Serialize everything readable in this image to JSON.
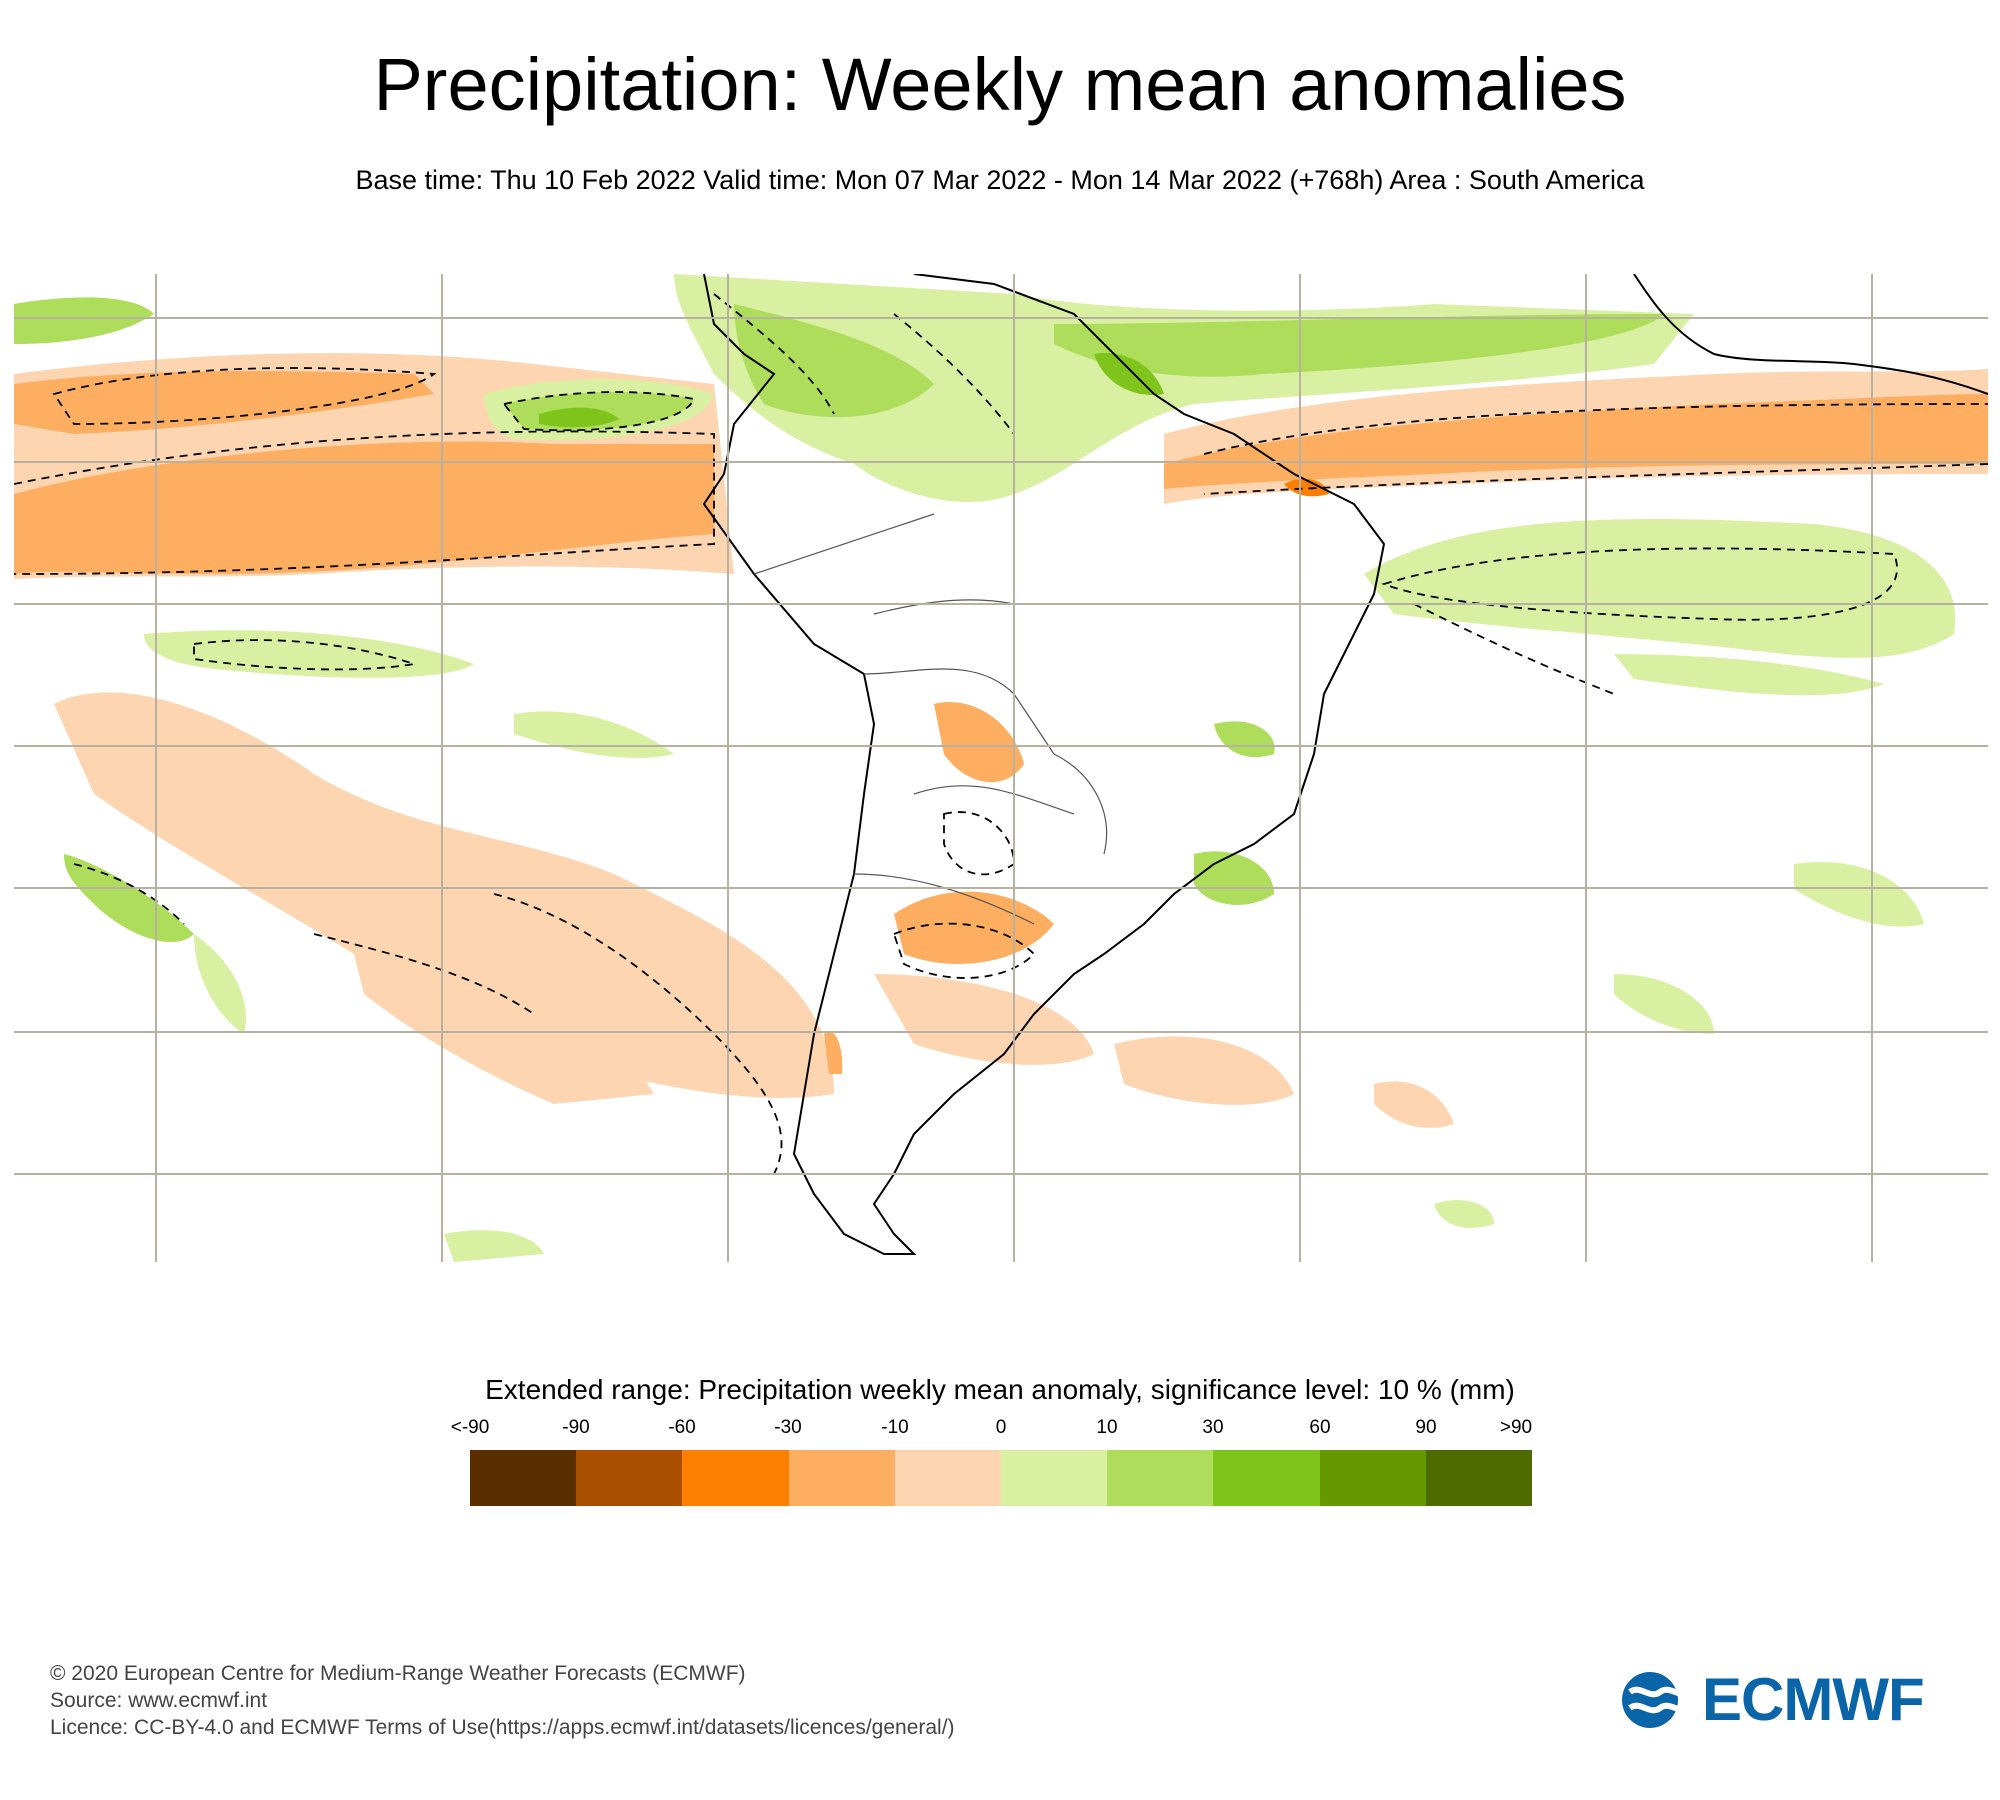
{
  "header": {
    "title": "Precipitation: Weekly mean anomalies",
    "subtitle": "Base time: Thu 10 Feb 2022 Valid time: Mon 07 Mar 2022 - Mon 14 Mar 2022 (+768h) Area : South America"
  },
  "map": {
    "region": "South America",
    "colors": {
      "strong_dry": "#fdae61",
      "dry": "#fdd5b1",
      "wet": "#d9f0a3",
      "strong_wet": "#addd5a",
      "very_wet": "#7fc41b",
      "extreme_dry": "#fd7f00",
      "land_line": "#000000",
      "grid": "#b8b0a0"
    }
  },
  "legend": {
    "title": "Extended range: Precipitation weekly mean anomaly, significance level: 10 % (mm)",
    "ticks": [
      "<-90",
      "-90",
      "-60",
      "-30",
      "-10",
      "0",
      "10",
      "30",
      "60",
      "90",
      ">90"
    ],
    "colors": [
      "#5a2d00",
      "#a85000",
      "#fd7f00",
      "#fdae61",
      "#fdd5b1",
      "#d9f0a3",
      "#addd5a",
      "#7fc41b",
      "#669900",
      "#4e6b00"
    ]
  },
  "footer": {
    "copyright": "© 2020 European Centre for Medium-Range Weather Forecasts (ECMWF)",
    "source": "Source: www.ecmwf.int",
    "licence": "Licence: CC-BY-4.0 and ECMWF Terms of Use(https://apps.ecmwf.int/datasets/licences/general/)"
  },
  "logo": {
    "text": "ECMWF",
    "color": "#0a64a8"
  }
}
